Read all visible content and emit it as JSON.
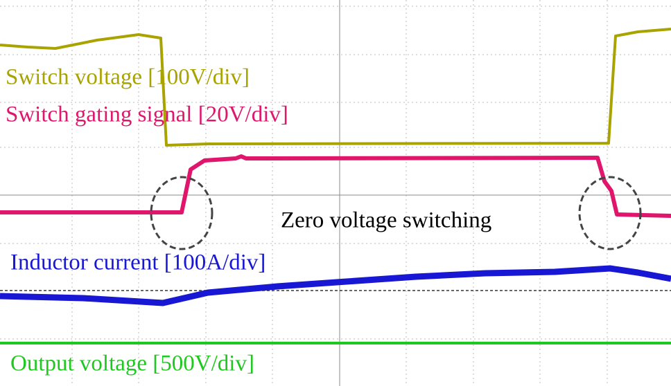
{
  "traces": [
    {
      "label": "Switch voltage [100V/div]",
      "color": "#a9a300"
    },
    {
      "label": "Switch gating signal [20V/div]",
      "color": "#e0166c"
    },
    {
      "label": "Inductor current [100A/div]",
      "color": "#1717d4"
    },
    {
      "label": "Output voltage [500V/div]",
      "color": "#1fc81f"
    }
  ],
  "annotation": "Zero voltage switching"
}
